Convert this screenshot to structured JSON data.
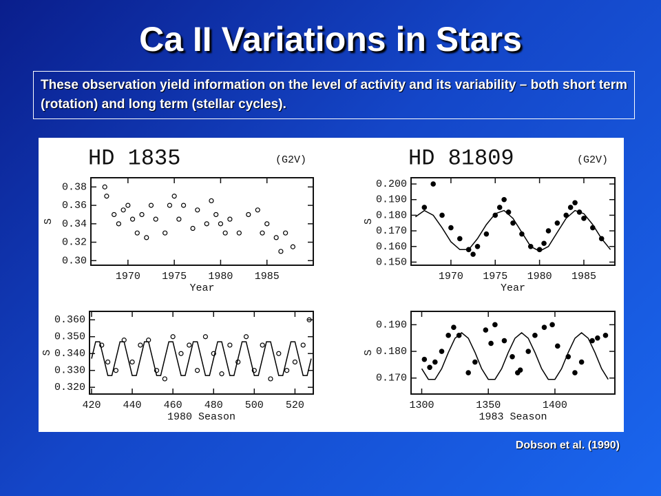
{
  "title": "Ca II Variations in Stars",
  "subtitle": "These observation yield information on the level of activity and its variability – both short term (rotation) and long term (stellar cycles).",
  "citation": "Dobson et al. (1990)",
  "chart_data": [
    {
      "type": "scatter",
      "title": "HD 1835",
      "annotation": "(G2V)",
      "xlabel": "Year",
      "ylabel": "S",
      "xlim": [
        1966,
        1990
      ],
      "xticks": [
        1970,
        1975,
        1980,
        1985
      ],
      "ylim": [
        0.295,
        0.39
      ],
      "yticks": [
        0.38,
        0.36,
        0.34,
        0.32,
        {
          "value": 0.3,
          "label": "0.30"
        }
      ],
      "series": [
        {
          "type": "scatter",
          "marker": "open",
          "color": "#000000",
          "x": [
            1967.5,
            1967.7,
            1968.5,
            1969,
            1969.5,
            1970,
            1970.5,
            1971,
            1971.5,
            1972,
            1972.5,
            1973,
            1974,
            1974.5,
            1975,
            1975.5,
            1976,
            1977,
            1977.5,
            1978.5,
            1979,
            1979.5,
            1980,
            1980.5,
            1981,
            1982,
            1983,
            1984,
            1984.5,
            1985,
            1986,
            1986.5,
            1987,
            1987.8
          ],
          "values": [
            0.38,
            0.37,
            0.35,
            0.34,
            0.355,
            0.36,
            0.345,
            0.33,
            0.35,
            0.325,
            0.36,
            0.345,
            0.33,
            0.36,
            0.37,
            0.345,
            0.36,
            0.335,
            0.355,
            0.34,
            0.365,
            0.35,
            0.34,
            0.33,
            0.345,
            0.33,
            0.35,
            0.355,
            0.33,
            0.34,
            0.325,
            0.31,
            0.33,
            0.315
          ]
        }
      ]
    },
    {
      "type": "scatter",
      "title": "HD 81809",
      "annotation": "(G2V)",
      "xlabel": "Year",
      "ylabel": "S",
      "xlim": [
        1965.5,
        1988.5
      ],
      "xticks": [
        1970,
        1975,
        1980,
        1985
      ],
      "ylim": [
        0.148,
        0.204
      ],
      "yticks": [
        {
          "value": 0.2,
          "label": "0.200"
        },
        {
          "value": 0.19,
          "label": "0.190"
        },
        {
          "value": 0.18,
          "label": "0.180"
        },
        {
          "value": 0.17,
          "label": "0.170"
        },
        {
          "value": 0.16,
          "label": "0.160"
        },
        {
          "value": 0.15,
          "label": "0.150"
        }
      ],
      "series": [
        {
          "type": "scatter",
          "marker": "filled",
          "color": "#000000",
          "x": [
            1967,
            1968,
            1969,
            1970,
            1971,
            1972,
            1972.5,
            1973,
            1974,
            1975,
            1975.5,
            1976,
            1976.5,
            1977,
            1978,
            1979,
            1980,
            1980.5,
            1981,
            1982,
            1983,
            1983.5,
            1984,
            1984.5,
            1985,
            1986,
            1987
          ],
          "values": [
            0.185,
            0.2,
            0.18,
            0.172,
            0.165,
            0.158,
            0.155,
            0.16,
            0.168,
            0.18,
            0.185,
            0.19,
            0.182,
            0.175,
            0.168,
            0.16,
            0.158,
            0.162,
            0.17,
            0.175,
            0.18,
            0.185,
            0.188,
            0.182,
            0.178,
            0.172,
            0.165
          ]
        },
        {
          "type": "line",
          "color": "#000000",
          "x": [
            1966,
            1967,
            1968,
            1969,
            1970,
            1971,
            1972,
            1973,
            1974,
            1975,
            1976,
            1977,
            1978,
            1979,
            1980,
            1981,
            1982,
            1983,
            1984,
            1985,
            1986,
            1987,
            1988
          ],
          "values": [
            0.179,
            0.183,
            0.18,
            0.172,
            0.163,
            0.158,
            0.158,
            0.165,
            0.174,
            0.181,
            0.183,
            0.178,
            0.169,
            0.16,
            0.157,
            0.16,
            0.169,
            0.178,
            0.183,
            0.181,
            0.174,
            0.165,
            0.158
          ]
        }
      ]
    },
    {
      "type": "scatter",
      "xlabel": "1980 Season",
      "ylabel": "S",
      "xlim": [
        419,
        529
      ],
      "xticks": [
        420,
        440,
        460,
        480,
        500,
        520
      ],
      "ylim": [
        0.316,
        0.365
      ],
      "yticks": [
        {
          "value": 0.36,
          "label": "0.360"
        },
        {
          "value": 0.35,
          "label": "0.350"
        },
        {
          "value": 0.34,
          "label": "0.340"
        },
        {
          "value": 0.33,
          "label": "0.330"
        },
        {
          "value": 0.32,
          "label": "0.320"
        }
      ],
      "series": [
        {
          "type": "scatter",
          "marker": "open",
          "color": "#000000",
          "x": [
            425,
            428,
            432,
            436,
            440,
            444,
            448,
            452,
            456,
            460,
            464,
            468,
            472,
            476,
            480,
            484,
            488,
            492,
            496,
            500,
            504,
            508,
            512,
            516,
            520,
            524,
            527
          ],
          "values": [
            0.345,
            0.335,
            0.33,
            0.348,
            0.335,
            0.345,
            0.348,
            0.33,
            0.325,
            0.35,
            0.34,
            0.345,
            0.33,
            0.35,
            0.34,
            0.328,
            0.345,
            0.335,
            0.35,
            0.33,
            0.345,
            0.325,
            0.34,
            0.33,
            0.335,
            0.345,
            0.36
          ]
        },
        {
          "type": "line",
          "color": "#000000",
          "x": [
            420,
            422,
            424,
            426,
            428,
            430,
            432,
            434,
            436,
            438,
            440,
            442,
            444,
            446,
            448,
            450,
            452,
            454,
            456,
            458,
            460,
            462,
            464,
            466,
            468,
            470,
            472,
            474,
            476,
            478,
            480,
            482,
            484,
            486,
            488,
            490,
            492,
            494,
            496,
            498,
            500,
            502,
            504,
            506,
            508,
            510,
            512,
            514,
            516,
            518,
            520,
            522,
            524,
            526,
            528
          ],
          "values": [
            0.337,
            0.347,
            0.347,
            0.337,
            0.327,
            0.327,
            0.337,
            0.347,
            0.347,
            0.337,
            0.327,
            0.327,
            0.337,
            0.347,
            0.347,
            0.337,
            0.327,
            0.327,
            0.337,
            0.347,
            0.347,
            0.337,
            0.327,
            0.327,
            0.337,
            0.347,
            0.347,
            0.337,
            0.327,
            0.327,
            0.337,
            0.347,
            0.347,
            0.337,
            0.327,
            0.327,
            0.337,
            0.347,
            0.347,
            0.337,
            0.327,
            0.327,
            0.337,
            0.347,
            0.347,
            0.337,
            0.327,
            0.327,
            0.337,
            0.347,
            0.347,
            0.337,
            0.327,
            0.327,
            0.337
          ]
        }
      ]
    },
    {
      "type": "scatter",
      "xlabel": "1983 Season",
      "ylabel": "S",
      "xlim": [
        1292,
        1445
      ],
      "xticks": [
        1300,
        1350,
        1400
      ],
      "ylim": [
        0.164,
        0.195
      ],
      "yticks": [
        {
          "value": 0.19,
          "label": "0.190"
        },
        {
          "value": 0.18,
          "label": "0.180"
        },
        {
          "value": 0.17,
          "label": "0.170"
        }
      ],
      "series": [
        {
          "type": "scatter",
          "marker": "filled",
          "color": "#000000",
          "x": [
            1302,
            1306,
            1310,
            1315,
            1320,
            1324,
            1328,
            1335,
            1340,
            1348,
            1352,
            1355,
            1362,
            1368,
            1372,
            1374,
            1380,
            1385,
            1392,
            1398,
            1402,
            1410,
            1415,
            1420,
            1428,
            1432,
            1438
          ],
          "values": [
            0.177,
            0.174,
            0.176,
            0.18,
            0.186,
            0.189,
            0.186,
            0.172,
            0.176,
            0.188,
            0.183,
            0.19,
            0.184,
            0.178,
            0.172,
            0.173,
            0.18,
            0.186,
            0.189,
            0.19,
            0.182,
            0.178,
            0.172,
            0.176,
            0.184,
            0.185,
            0.186
          ]
        },
        {
          "type": "line",
          "color": "#000000",
          "x": [
            1300,
            1305,
            1310,
            1315,
            1320,
            1325,
            1330,
            1335,
            1340,
            1345,
            1350,
            1355,
            1360,
            1365,
            1370,
            1375,
            1380,
            1385,
            1390,
            1395,
            1400,
            1405,
            1410,
            1415,
            1420,
            1425,
            1430,
            1435,
            1440
          ],
          "values": [
            0.1735,
            0.1695,
            0.1695,
            0.1735,
            0.1796,
            0.1849,
            0.187,
            0.1849,
            0.1796,
            0.1735,
            0.1695,
            0.1695,
            0.1735,
            0.1796,
            0.1849,
            0.187,
            0.1849,
            0.1796,
            0.1735,
            0.1695,
            0.1695,
            0.1735,
            0.1796,
            0.1849,
            0.187,
            0.1849,
            0.1796,
            0.1735,
            0.1695
          ]
        }
      ]
    }
  ]
}
